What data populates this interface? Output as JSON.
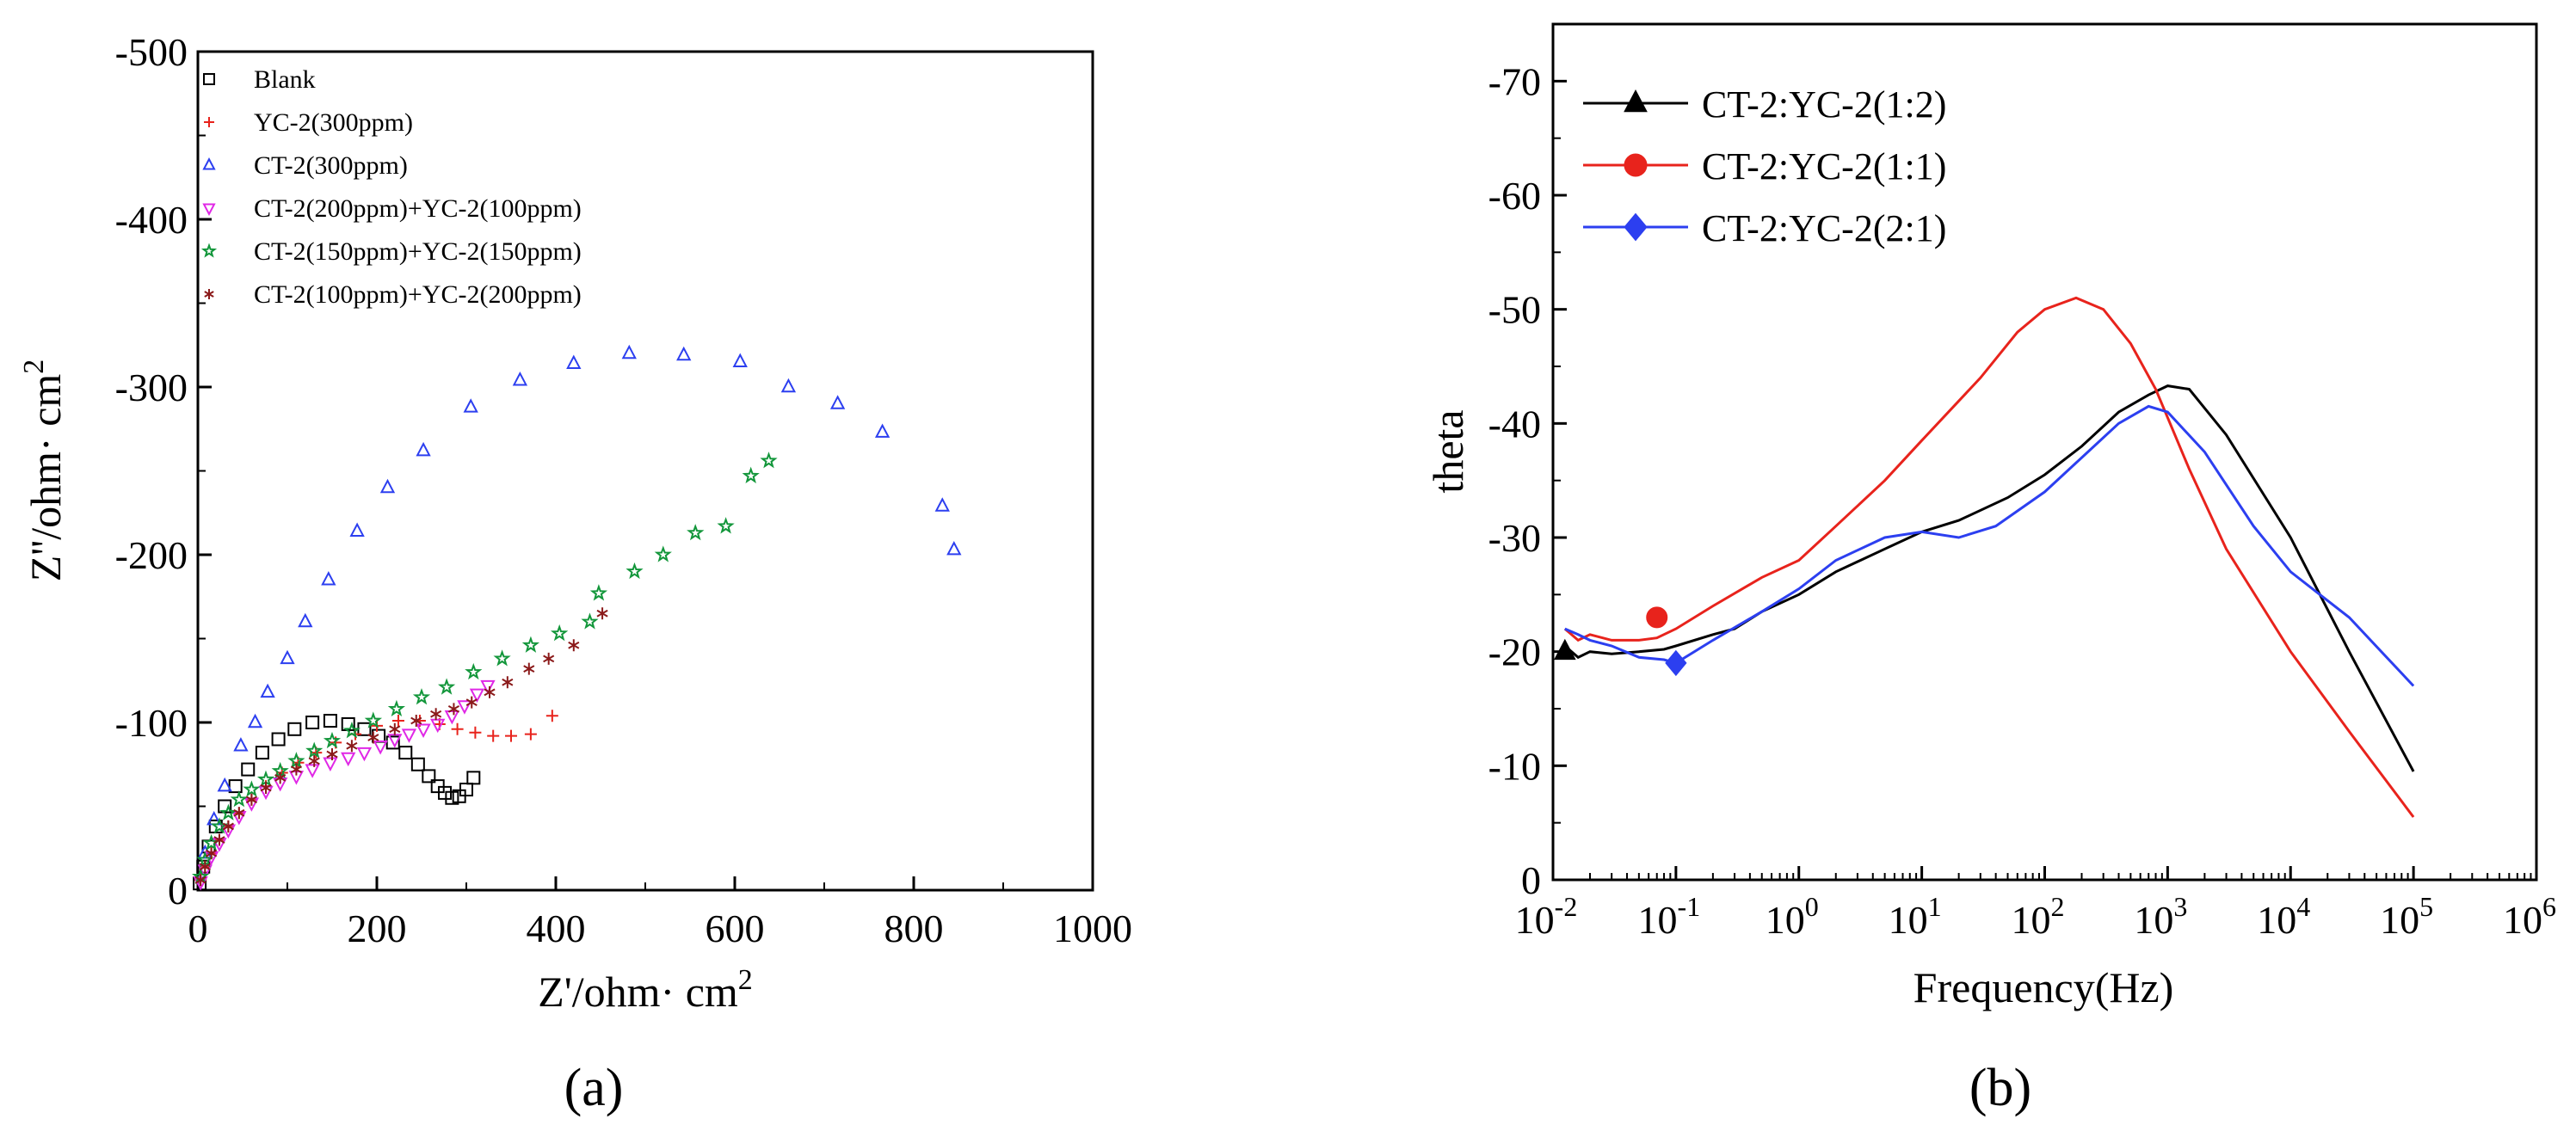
{
  "chart_data": [
    {
      "panel_label": "(a)",
      "type": "scatter",
      "title": "",
      "xlabel": "Z'/ohm· cm",
      "xlabel_sup": "2",
      "ylabel": "Z''/ohm· cm",
      "ylabel_sup": "2",
      "xlim": [
        0,
        1000
      ],
      "ylim": [
        0,
        -500
      ],
      "xticks": [
        "0",
        "200",
        "400",
        "600",
        "800",
        "1000"
      ],
      "yticks": [
        "0",
        "-100",
        "-200",
        "-300",
        "-400",
        "-500"
      ],
      "legend_position": "top-left",
      "series": [
        {
          "name": "Blank",
          "color": "#000000",
          "marker": "square",
          "points": [
            [
              2,
              -4
            ],
            [
              6,
              -14
            ],
            [
              12,
              -26
            ],
            [
              20,
              -38
            ],
            [
              30,
              -50
            ],
            [
              42,
              -62
            ],
            [
              56,
              -72
            ],
            [
              72,
              -82
            ],
            [
              90,
              -90
            ],
            [
              108,
              -96
            ],
            [
              128,
              -100
            ],
            [
              148,
              -101
            ],
            [
              168,
              -99
            ],
            [
              186,
              -96
            ],
            [
              202,
              -92
            ],
            [
              218,
              -88
            ],
            [
              232,
              -82
            ],
            [
              246,
              -75
            ],
            [
              258,
              -68
            ],
            [
              268,
              -62
            ],
            [
              276,
              -58
            ],
            [
              284,
              -55
            ],
            [
              292,
              -56
            ],
            [
              300,
              -60
            ],
            [
              308,
              -67
            ]
          ]
        },
        {
          "name": "YC-2(300ppm)",
          "color": "#e8231c",
          "marker": "plus",
          "points": [
            [
              3,
              -6
            ],
            [
              8,
              -14
            ],
            [
              15,
              -22
            ],
            [
              24,
              -30
            ],
            [
              34,
              -38
            ],
            [
              46,
              -46
            ],
            [
              60,
              -54
            ],
            [
              76,
              -62
            ],
            [
              94,
              -70
            ],
            [
              112,
              -76
            ],
            [
              132,
              -82
            ],
            [
              154,
              -88
            ],
            [
              176,
              -93
            ],
            [
              200,
              -98
            ],
            [
              224,
              -101
            ],
            [
              248,
              -101
            ],
            [
              270,
              -99
            ],
            [
              290,
              -96
            ],
            [
              310,
              -94
            ],
            [
              330,
              -92
            ],
            [
              350,
              -92
            ],
            [
              372,
              -93
            ],
            [
              396,
              -104
            ]
          ]
        },
        {
          "name": "CT-2(300ppm)",
          "color": "#2c3ff0",
          "marker": "triangle",
          "points": [
            [
              8,
              -22
            ],
            [
              18,
              -42
            ],
            [
              30,
              -62
            ],
            [
              48,
              -86
            ],
            [
              64,
              -100
            ],
            [
              78,
              -118
            ],
            [
              100,
              -138
            ],
            [
              120,
              -160
            ],
            [
              146,
              -185
            ],
            [
              178,
              -214
            ],
            [
              212,
              -240
            ],
            [
              252,
              -262
            ],
            [
              305,
              -288
            ],
            [
              360,
              -304
            ],
            [
              420,
              -314
            ],
            [
              482,
              -320
            ],
            [
              543,
              -319
            ],
            [
              606,
              -315
            ],
            [
              660,
              -300
            ],
            [
              715,
              -290
            ],
            [
              765,
              -273
            ],
            [
              832,
              -229
            ],
            [
              845,
              -203
            ]
          ]
        },
        {
          "name": "CT-2(200ppm)+YC-2(100ppm)",
          "color": "#e028e6",
          "marker": "triangle-down",
          "points": [
            [
              3,
              -5
            ],
            [
              8,
              -12
            ],
            [
              15,
              -20
            ],
            [
              24,
              -28
            ],
            [
              34,
              -36
            ],
            [
              46,
              -44
            ],
            [
              60,
              -52
            ],
            [
              76,
              -59
            ],
            [
              92,
              -64
            ],
            [
              110,
              -68
            ],
            [
              128,
              -72
            ],
            [
              148,
              -76
            ],
            [
              168,
              -79
            ],
            [
              186,
              -82
            ],
            [
              204,
              -86
            ],
            [
              220,
              -90
            ],
            [
              236,
              -93
            ],
            [
              252,
              -96
            ],
            [
              268,
              -99
            ],
            [
              284,
              -104
            ],
            [
              298,
              -110
            ],
            [
              312,
              -117
            ],
            [
              324,
              -122
            ]
          ]
        },
        {
          "name": "CT-2(150ppm)+YC-2(150ppm)",
          "color": "#12963a",
          "marker": "star",
          "points": [
            [
              3,
              -8
            ],
            [
              8,
              -18
            ],
            [
              15,
              -28
            ],
            [
              24,
              -38
            ],
            [
              34,
              -46
            ],
            [
              46,
              -54
            ],
            [
              60,
              -60
            ],
            [
              76,
              -66
            ],
            [
              92,
              -71
            ],
            [
              110,
              -77
            ],
            [
              130,
              -83
            ],
            [
              150,
              -89
            ],
            [
              172,
              -95
            ],
            [
              196,
              -101
            ],
            [
              222,
              -108
            ],
            [
              250,
              -115
            ],
            [
              278,
              -121
            ],
            [
              308,
              -130
            ],
            [
              340,
              -138
            ],
            [
              372,
              -146
            ],
            [
              404,
              -153
            ],
            [
              438,
              -160
            ],
            [
              448,
              -177
            ],
            [
              488,
              -190
            ],
            [
              520,
              -200
            ],
            [
              556,
              -213
            ],
            [
              590,
              -217
            ],
            [
              618,
              -247
            ],
            [
              638,
              -256
            ]
          ]
        },
        {
          "name": "CT-2(100ppm)+YC-2(200ppm)",
          "color": "#8b1a1a",
          "marker": "asterisk",
          "points": [
            [
              3,
              -6
            ],
            [
              8,
              -14
            ],
            [
              15,
              -22
            ],
            [
              24,
              -30
            ],
            [
              34,
              -38
            ],
            [
              46,
              -46
            ],
            [
              60,
              -54
            ],
            [
              76,
              -61
            ],
            [
              92,
              -67
            ],
            [
              110,
              -72
            ],
            [
              130,
              -77
            ],
            [
              150,
              -81
            ],
            [
              172,
              -86
            ],
            [
              196,
              -91
            ],
            [
              220,
              -96
            ],
            [
              244,
              -101
            ],
            [
              266,
              -105
            ],
            [
              286,
              -108
            ],
            [
              306,
              -112
            ],
            [
              326,
              -118
            ],
            [
              346,
              -124
            ],
            [
              370,
              -132
            ],
            [
              392,
              -138
            ],
            [
              420,
              -146
            ],
            [
              452,
              -165
            ]
          ]
        }
      ]
    },
    {
      "panel_label": "(b)",
      "type": "line",
      "title": "",
      "xlabel": "Frequency(Hz)",
      "ylabel": "theta",
      "x_scale": "log",
      "xlim": [
        0.01,
        1000000
      ],
      "ylim": [
        0,
        -75
      ],
      "xticks": [
        {
          "base": "10",
          "exp": "-2"
        },
        {
          "base": "10",
          "exp": "-1"
        },
        {
          "base": "10",
          "exp": "0"
        },
        {
          "base": "10",
          "exp": "1"
        },
        {
          "base": "10",
          "exp": "2"
        },
        {
          "base": "10",
          "exp": "3"
        },
        {
          "base": "10",
          "exp": "4"
        },
        {
          "base": "10",
          "exp": "5"
        },
        {
          "base": "10",
          "exp": "6"
        }
      ],
      "yticks": [
        "0",
        "-10",
        "-20",
        "-30",
        "-40",
        "-50",
        "-60",
        "-70"
      ],
      "legend_position": "top-left",
      "series": [
        {
          "name": "CT-2:YC-2(1:2)",
          "color": "#000000",
          "marker": "triangle",
          "marker_point": [
            0.0125,
            -20
          ],
          "points": [
            [
              0.0125,
              -20.5
            ],
            [
              0.016,
              -19.5
            ],
            [
              0.02,
              -20
            ],
            [
              0.03,
              -19.8
            ],
            [
              0.05,
              -20
            ],
            [
              0.08,
              -20.2
            ],
            [
              0.1,
              -20.5
            ],
            [
              0.2,
              -21.5
            ],
            [
              0.3,
              -22
            ],
            [
              0.5,
              -23.5
            ],
            [
              1,
              -25
            ],
            [
              2,
              -27
            ],
            [
              5,
              -29
            ],
            [
              10,
              -30.5
            ],
            [
              20,
              -31.5
            ],
            [
              50,
              -33.5
            ],
            [
              100,
              -35.5
            ],
            [
              200,
              -38
            ],
            [
              400,
              -41
            ],
            [
              700,
              -42.5
            ],
            [
              1000,
              -43.3
            ],
            [
              1500,
              -43
            ],
            [
              3000,
              -39
            ],
            [
              10000,
              -30
            ],
            [
              30000,
              -20
            ],
            [
              100000,
              -9.5
            ]
          ]
        },
        {
          "name": "CT-2:YC-2(1:1)",
          "color": "#e8231c",
          "marker": "circle",
          "marker_point": [
            0.07,
            -23
          ],
          "points": [
            [
              0.0125,
              -22
            ],
            [
              0.016,
              -21
            ],
            [
              0.02,
              -21.5
            ],
            [
              0.03,
              -21
            ],
            [
              0.05,
              -21
            ],
            [
              0.07,
              -21.2
            ],
            [
              0.1,
              -22
            ],
            [
              0.2,
              -24
            ],
            [
              0.5,
              -26.5
            ],
            [
              1,
              -28
            ],
            [
              2,
              -31
            ],
            [
              5,
              -35
            ],
            [
              10,
              -38.5
            ],
            [
              30,
              -44
            ],
            [
              60,
              -48
            ],
            [
              100,
              -50
            ],
            [
              180,
              -51
            ],
            [
              300,
              -50
            ],
            [
              500,
              -47
            ],
            [
              800,
              -43
            ],
            [
              1500,
              -36
            ],
            [
              3000,
              -29
            ],
            [
              10000,
              -20
            ],
            [
              30000,
              -13
            ],
            [
              100000,
              -5.5
            ]
          ]
        },
        {
          "name": "CT-2:YC-2(2:1)",
          "color": "#2c3ff0",
          "marker": "diamond",
          "marker_point": [
            0.1,
            -19
          ],
          "points": [
            [
              0.0125,
              -22
            ],
            [
              0.016,
              -21.5
            ],
            [
              0.02,
              -21
            ],
            [
              0.03,
              -20.5
            ],
            [
              0.05,
              -19.5
            ],
            [
              0.08,
              -19.3
            ],
            [
              0.1,
              -19
            ],
            [
              0.2,
              -21
            ],
            [
              0.5,
              -23.5
            ],
            [
              1,
              -25.5
            ],
            [
              2,
              -28
            ],
            [
              5,
              -30
            ],
            [
              10,
              -30.5
            ],
            [
              20,
              -30
            ],
            [
              40,
              -31
            ],
            [
              100,
              -34
            ],
            [
              200,
              -37
            ],
            [
              400,
              -40
            ],
            [
              700,
              -41.5
            ],
            [
              1000,
              -41
            ],
            [
              2000,
              -37.5
            ],
            [
              5000,
              -31
            ],
            [
              10000,
              -27
            ],
            [
              30000,
              -23
            ],
            [
              100000,
              -17
            ]
          ]
        }
      ]
    }
  ]
}
